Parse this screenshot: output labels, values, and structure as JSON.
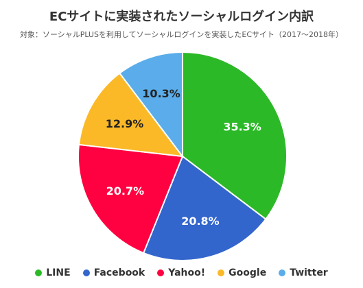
{
  "chart_data": {
    "type": "pie",
    "title": "ECサイトに実装されたソーシャルログイン内訳",
    "subtitle": "対象：ソーシャルPLUSを利用してソーシャルログインを実装したECサイト（2017〜2018年）",
    "legend_position": "bottom",
    "categories": [
      "LINE",
      "Facebook",
      "Yahoo!",
      "Google",
      "Twitter"
    ],
    "values": [
      35.3,
      20.8,
      20.7,
      12.9,
      10.3
    ],
    "labels": [
      "35.3%",
      "20.8%",
      "20.7%",
      "12.9%",
      "10.3%"
    ],
    "colors": [
      "#2cb928",
      "#3366cc",
      "#ff0040",
      "#fbb927",
      "#5aadea"
    ],
    "label_colors": [
      "#ffffff",
      "#ffffff",
      "#ffffff",
      "#222222",
      "#222222"
    ]
  }
}
